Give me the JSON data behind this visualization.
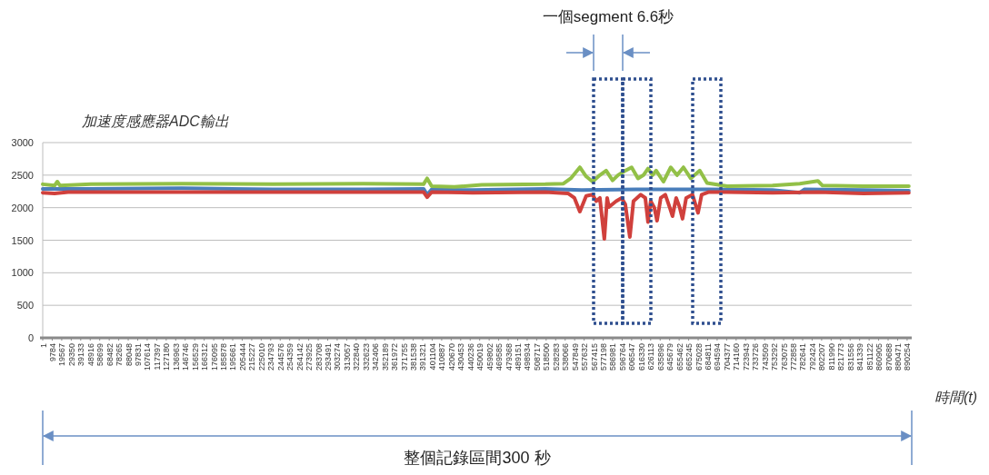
{
  "chart_data": {
    "type": "line",
    "ylabel": "加速度感應器ADC輸出",
    "xlabel": "時間(t)",
    "xlim": [
      1,
      895000
    ],
    "ylim": [
      0,
      3000
    ],
    "yticks": [
      0,
      500,
      1000,
      1500,
      2000,
      2500,
      3000
    ],
    "xticks": [
      1,
      9784,
      19567,
      29350,
      39133,
      48916,
      58699,
      68482,
      78265,
      88048,
      97831,
      107614,
      117397,
      127180,
      136963,
      146746,
      156529,
      166312,
      176095,
      185878,
      195661,
      205444,
      215227,
      225010,
      234793,
      244576,
      254359,
      264142,
      273925,
      283708,
      293491,
      303274,
      313057,
      322840,
      332623,
      342406,
      352189,
      361972,
      371755,
      381538,
      391321,
      401104,
      410887,
      420670,
      430453,
      440236,
      450019,
      459802,
      469585,
      479368,
      489151,
      498934,
      508717,
      518500,
      528283,
      538066,
      547849,
      557632,
      567415,
      577198,
      586981,
      596764,
      606547,
      616330,
      626113,
      635896,
      645679,
      655462,
      665245,
      675028,
      684811,
      694594,
      704377,
      714160,
      723943,
      733726,
      743509,
      753292,
      763075,
      772858,
      782641,
      792424,
      802207,
      811990,
      821773,
      831556,
      841339,
      851122,
      860905,
      870688,
      880471,
      890254
    ],
    "grid": "y",
    "line_style": "solid",
    "series": [
      {
        "color": "#4a7ebb",
        "x": [
          1,
          49600,
          143200,
          236800,
          330400,
          392200,
          395900,
          400600,
          442700,
          517600,
          555000,
          611200,
          686100,
          751600,
          779700,
          784400,
          845200,
          892000
        ],
        "values": [
          2290,
          2290,
          2300,
          2280,
          2280,
          2290,
          2200,
          2280,
          2270,
          2290,
          2270,
          2280,
          2280,
          2270,
          2230,
          2280,
          2270,
          2260
        ]
      },
      {
        "color": "#d0403c",
        "x": [
          1,
          12200,
          26200,
          49600,
          96400,
          143200,
          236800,
          330400,
          392200,
          395900,
          400600,
          442700,
          517600,
          541000,
          547600,
          553200,
          559700,
          566300,
          570000,
          573800,
          578400,
          581300,
          583100,
          590600,
          596200,
          600000,
          604700,
          608400,
          615900,
          620600,
          623400,
          626200,
          629900,
          632700,
          636500,
          641200,
          645800,
          648600,
          652400,
          656100,
          658900,
          662700,
          669200,
          674900,
          678600,
          686100,
          704800,
          751600,
          798400,
          845200,
          892000
        ],
        "values": [
          2230,
          2220,
          2240,
          2240,
          2240,
          2240,
          2240,
          2240,
          2240,
          2160,
          2240,
          2230,
          2240,
          2220,
          2150,
          1940,
          2180,
          2200,
          2100,
          2150,
          1520,
          2150,
          2010,
          2100,
          2150,
          2050,
          1550,
          2100,
          2200,
          2150,
          1780,
          2100,
          2000,
          1800,
          2150,
          2200,
          2000,
          1870,
          2150,
          2000,
          1830,
          2150,
          2200,
          1920,
          2200,
          2240,
          2240,
          2230,
          2240,
          2220,
          2230
        ]
      },
      {
        "color": "#92c047",
        "x": [
          1,
          12200,
          15000,
          17800,
          49600,
          143200,
          236800,
          330400,
          392200,
          395900,
          400600,
          424000,
          452100,
          517600,
          536300,
          543800,
          553200,
          559700,
          566300,
          573800,
          580300,
          586900,
          592500,
          599000,
          606500,
          613100,
          618700,
          623400,
          628100,
          631800,
          639300,
          646800,
          653300,
          659900,
          667400,
          676700,
          684200,
          704800,
          751600,
          779700,
          798400,
          803100,
          845200,
          892000
        ],
        "values": [
          2360,
          2340,
          2400,
          2340,
          2360,
          2370,
          2360,
          2370,
          2360,
          2450,
          2330,
          2320,
          2350,
          2360,
          2370,
          2450,
          2620,
          2480,
          2400,
          2500,
          2570,
          2420,
          2500,
          2560,
          2620,
          2450,
          2500,
          2600,
          2500,
          2570,
          2400,
          2620,
          2500,
          2620,
          2450,
          2570,
          2380,
          2330,
          2340,
          2370,
          2410,
          2340,
          2330,
          2330
        ]
      }
    ],
    "annotations": [
      "一個segment 6.6秒",
      "整個記錄區間300 秒"
    ]
  }
}
